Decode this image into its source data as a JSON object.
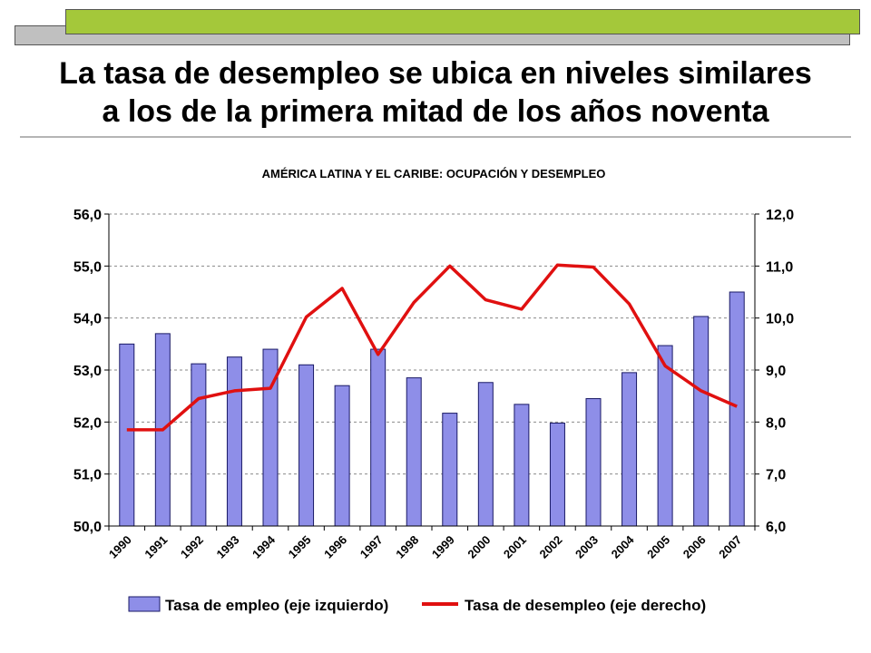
{
  "slide": {
    "title_line1": "La tasa de desempleo se ubica en niveles similares",
    "title_line2": "a los de la primera mitad de los años noventa"
  },
  "colors": {
    "bar_fill": "#8e8ee8",
    "bar_stroke": "#1a1a66",
    "line": "#e01010",
    "accent_green": "#a4c83a",
    "accent_gray": "#c0c0c0"
  },
  "chart_data": {
    "type": "bar",
    "title": "AMÉRICA LATINA Y EL CARIBE: OCUPACIÓN Y DESEMPLEO",
    "categories": [
      "1990",
      "1991",
      "1992",
      "1993",
      "1994",
      "1995",
      "1996",
      "1997",
      "1998",
      "1999",
      "2000",
      "2001",
      "2002",
      "2003",
      "2004",
      "2005",
      "2006",
      "2007"
    ],
    "series": [
      {
        "name": "Tasa de empleo (eje izquierdo)",
        "type": "bar",
        "axis": "left",
        "values": [
          53.5,
          53.7,
          53.12,
          53.25,
          53.4,
          53.1,
          52.7,
          53.4,
          52.85,
          52.17,
          52.76,
          52.34,
          51.98,
          52.45,
          52.95,
          53.47,
          54.03,
          54.5
        ]
      },
      {
        "name": "Tasa de desempleo (eje derecho)",
        "type": "line",
        "axis": "right",
        "values": [
          7.85,
          7.85,
          8.45,
          8.6,
          8.65,
          10.02,
          10.57,
          9.3,
          10.3,
          11.0,
          10.35,
          10.17,
          11.02,
          10.98,
          10.27,
          9.08,
          8.6,
          8.3
        ]
      }
    ],
    "yaxis_left": {
      "min": 50,
      "max": 56,
      "ticks": [
        "50,0",
        "51,0",
        "52,0",
        "53,0",
        "54,0",
        "55,0",
        "56,0"
      ]
    },
    "yaxis_right": {
      "min": 6,
      "max": 12,
      "ticks": [
        "6,0",
        "7,0",
        "8,0",
        "9,0",
        "10,0",
        "11,0",
        "12,0"
      ]
    },
    "grid": true,
    "legend": "bottom"
  }
}
